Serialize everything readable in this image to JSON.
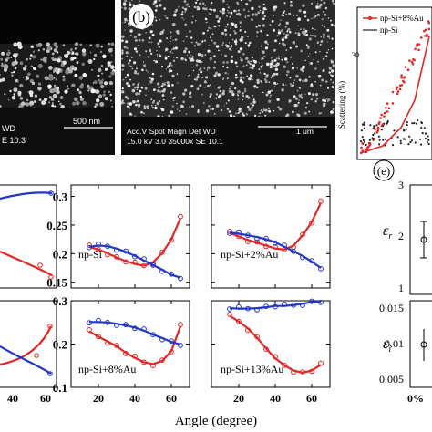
{
  "panels": {
    "b_label": "(b)",
    "e_label": "(e)"
  },
  "sem": {
    "a_bar": "500 nm",
    "a_frag1": "WD",
    "a_frag2": "E 10.3",
    "b_bar": "1 um",
    "b_line1": "Acc.V  Spot Magn    Det  WD",
    "b_line2": "15.0 kV 3.0  35000x   SE  10.1"
  },
  "scatter": {
    "ylabel": "Scattering (%)",
    "legend": [
      "np-Si+8%Au",
      "np-Si"
    ],
    "colors": [
      "#e32626",
      "#222222"
    ]
  },
  "xlabel": "Angle (degree)",
  "plot_tick_labels": {
    "y_top": [
      "0.3",
      "0.25",
      "0.2",
      "0.15"
    ],
    "y_bottom": [
      "0.3",
      "0.2",
      "0.1"
    ],
    "x": [
      "40",
      "20",
      "40",
      "60",
      "20",
      "40",
      "60"
    ]
  },
  "chart_data": [
    {
      "type": "line",
      "title": "",
      "xlabel": "Angle (degree)",
      "ylabel": "",
      "ylim": [
        0.14,
        0.32
      ],
      "xlim": [
        5,
        70
      ],
      "series": [
        {
          "color": "#e32626",
          "x": [
            15,
            20,
            25,
            30,
            35,
            40,
            45,
            50,
            55,
            60,
            65
          ],
          "values": [
            0.212,
            0.207,
            0.201,
            0.193,
            0.187,
            0.182,
            0.179,
            0.185,
            0.201,
            0.225,
            0.262
          ]
        },
        {
          "color": "#2236c8",
          "x": [
            15,
            20,
            25,
            30,
            35,
            40,
            45,
            50,
            55,
            60,
            65
          ],
          "values": [
            0.212,
            0.214,
            0.213,
            0.209,
            0.203,
            0.196,
            0.188,
            0.18,
            0.172,
            0.163,
            0.158
          ]
        }
      ],
      "annotations": [
        "np-Si"
      ]
    },
    {
      "type": "line",
      "title": "",
      "xlabel": "Angle (degree)",
      "ylabel": "",
      "ylim": [
        0.14,
        0.32
      ],
      "xlim": [
        5,
        70
      ],
      "series": [
        {
          "color": "#e32626",
          "x": [
            15,
            20,
            25,
            30,
            35,
            40,
            45,
            50,
            55,
            60,
            65
          ],
          "values": [
            0.236,
            0.23,
            0.224,
            0.219,
            0.214,
            0.209,
            0.207,
            0.214,
            0.232,
            0.255,
            0.289
          ]
        },
        {
          "color": "#2236c8",
          "x": [
            15,
            20,
            25,
            30,
            35,
            40,
            45,
            50,
            55,
            60,
            65
          ],
          "values": [
            0.237,
            0.235,
            0.232,
            0.229,
            0.225,
            0.22,
            0.212,
            0.204,
            0.196,
            0.186,
            0.175
          ]
        }
      ],
      "annotations": [
        "np-Si+2%Au"
      ]
    },
    {
      "type": "line",
      "title": "",
      "xlabel": "Angle (degree)",
      "ylabel": "",
      "ylim": [
        0.1,
        0.3
      ],
      "xlim": [
        5,
        70
      ],
      "series": [
        {
          "color": "#e32626",
          "x": [
            15,
            20,
            25,
            30,
            35,
            40,
            45,
            50,
            55,
            60,
            65
          ],
          "values": [
            0.229,
            0.217,
            0.206,
            0.195,
            0.18,
            0.168,
            0.158,
            0.154,
            0.161,
            0.184,
            0.241
          ]
        },
        {
          "color": "#2236c8",
          "x": [
            15,
            20,
            25,
            30,
            35,
            40,
            45,
            50,
            55,
            60,
            65
          ],
          "values": [
            0.251,
            0.251,
            0.25,
            0.247,
            0.243,
            0.238,
            0.231,
            0.222,
            0.214,
            0.205,
            0.199
          ]
        }
      ],
      "annotations": [
        "np-Si+8%Au"
      ]
    },
    {
      "type": "line",
      "title": "",
      "xlabel": "Angle (degree)",
      "ylabel": "",
      "ylim": [
        0.1,
        0.3
      ],
      "xlim": [
        5,
        70
      ],
      "series": [
        {
          "color": "#e32626",
          "x": [
            15,
            20,
            25,
            30,
            35,
            40,
            45,
            50,
            55,
            60,
            65
          ],
          "values": [
            0.265,
            0.252,
            0.236,
            0.215,
            0.19,
            0.167,
            0.151,
            0.139,
            0.134,
            0.139,
            0.152
          ]
        },
        {
          "color": "#2236c8",
          "x": [
            15,
            20,
            25,
            30,
            35,
            40,
            45,
            50,
            55,
            60,
            65
          ],
          "values": [
            0.283,
            0.282,
            0.282,
            0.283,
            0.285,
            0.288,
            0.288,
            0.29,
            0.293,
            0.297,
            0.298
          ]
        }
      ],
      "annotations": [
        "np-Si+13%Au"
      ]
    }
  ],
  "panel_e": {
    "er_label": "ε_r",
    "ei_label": "ε_i",
    "top_ticks": [
      "3",
      "2",
      "1"
    ],
    "bottom_ticks": [
      "0.015",
      "0.01",
      "0.005"
    ],
    "x_tick": "0%"
  }
}
